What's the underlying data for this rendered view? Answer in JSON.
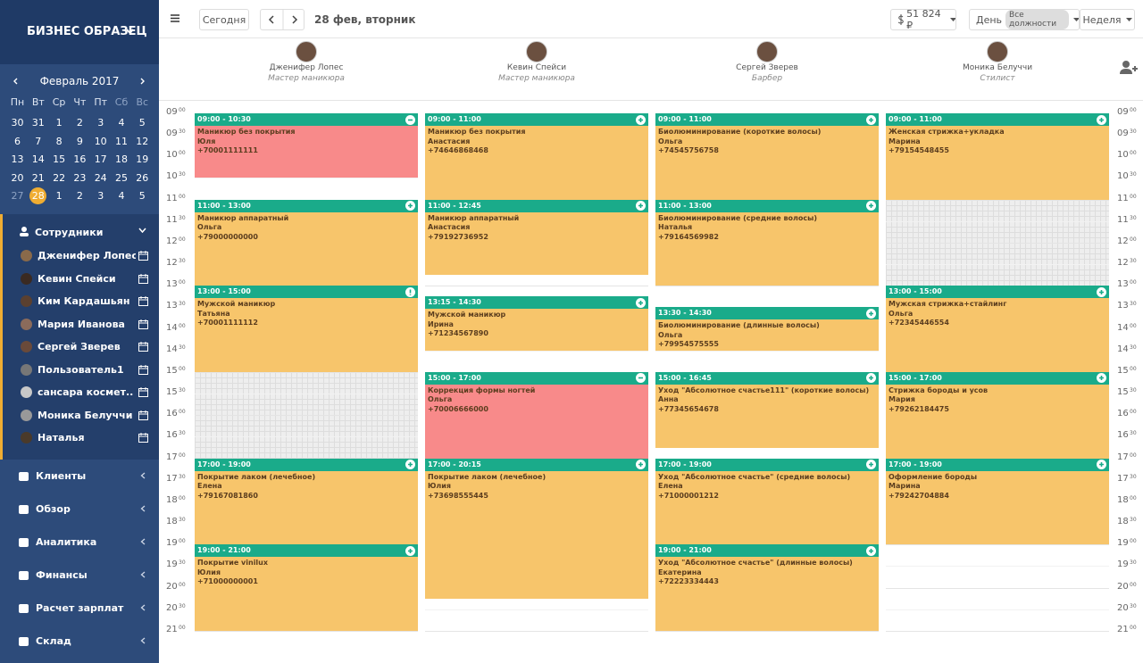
{
  "sidebar": {
    "brand": "БИЗНЕС ОБРАЗЕЦ",
    "calendar": {
      "month": "Февраль 2017",
      "weekdays": [
        "Пн",
        "Вт",
        "Ср",
        "Чт",
        "Пт",
        "Сб",
        "Вс"
      ],
      "weeks": [
        [
          "30",
          "31",
          "1",
          "2",
          "3",
          "4",
          "5"
        ],
        [
          "6",
          "7",
          "8",
          "9",
          "10",
          "11",
          "12"
        ],
        [
          "13",
          "14",
          "15",
          "16",
          "17",
          "18",
          "19"
        ],
        [
          "20",
          "21",
          "22",
          "23",
          "24",
          "25",
          "26"
        ],
        [
          "27",
          "28",
          "1",
          "2",
          "3",
          "4",
          "5"
        ]
      ]
    },
    "staff_title": "Сотрудники",
    "staff": [
      "Дженифер Лопес",
      "Кевин Спейси",
      "Ким Кардашьян",
      "Мария Иванова",
      "Сергей Зверев",
      "Пользователь1",
      "сансара космет..",
      "Моника Белуччи",
      "Наталья"
    ],
    "menu": [
      "Клиенты",
      "Обзор",
      "Аналитика",
      "Финансы",
      "Расчет зарплат",
      "Склад"
    ]
  },
  "toolbar": {
    "today": "Сегодня",
    "date": "28 фев, вторник",
    "balance": "51 824 ₽",
    "day": "День",
    "positions": "Все должности",
    "week": "Неделя"
  },
  "slots": [
    [
      "09",
      "00"
    ],
    [
      "09",
      "30"
    ],
    [
      "10",
      "00"
    ],
    [
      "10",
      "30"
    ],
    [
      "11",
      "00"
    ],
    [
      "11",
      "30"
    ],
    [
      "12",
      "00"
    ],
    [
      "12",
      "30"
    ],
    [
      "13",
      "00"
    ],
    [
      "13",
      "30"
    ],
    [
      "14",
      "00"
    ],
    [
      "14",
      "30"
    ],
    [
      "15",
      "00"
    ],
    [
      "15",
      "30"
    ],
    [
      "16",
      "00"
    ],
    [
      "16",
      "30"
    ],
    [
      "17",
      "00"
    ],
    [
      "17",
      "30"
    ],
    [
      "18",
      "00"
    ],
    [
      "18",
      "30"
    ],
    [
      "19",
      "00"
    ],
    [
      "19",
      "30"
    ],
    [
      "20",
      "00"
    ],
    [
      "20",
      "30"
    ],
    [
      "21",
      "00"
    ]
  ],
  "columns": [
    {
      "name": "Дженифер Лопес",
      "role": "Мастер маникюра",
      "appointments": [
        {
          "time": "09:00 - 10:30",
          "service": "Маникюр без покрытия",
          "client": "Юля",
          "phone": "+70001111111",
          "color": "#f88a8a",
          "icon": "minus"
        },
        {
          "time": "11:00 - 13:00",
          "service": "Маникюр аппаратный",
          "client": "Ольга",
          "phone": "+79000000000",
          "color": "#f7c56b",
          "icon": "plus"
        },
        {
          "time": "13:00 - 15:00",
          "service": "Мужской маникюр",
          "client": "Татьяна",
          "phone": "+70001111112",
          "color": "#f7c56b",
          "icon": "alert"
        },
        {
          "time": "17:00 - 19:00",
          "service": "Покрытие лаком (лечебное)",
          "client": "Елена",
          "phone": "+79167081860",
          "color": "#f7c56b",
          "icon": "plus"
        },
        {
          "time": "19:00 - 21:00",
          "service": "Покрытие vinilux",
          "client": "Юлия",
          "phone": "+71000000001",
          "color": "#f7c56b",
          "icon": "plus"
        }
      ]
    },
    {
      "name": "Кевин Спейси",
      "role": "Мастер маникюра",
      "appointments": [
        {
          "time": "09:00 - 11:00",
          "service": "Маникюр без покрытия",
          "client": "Анастасия",
          "phone": "+74646868468",
          "color": "#f7c56b",
          "icon": "plus"
        },
        {
          "time": "11:00 - 12:45",
          "service": "Маникюр аппаратный",
          "client": "Анастасия",
          "phone": "+79192736952",
          "color": "#f7c56b",
          "icon": "plus"
        },
        {
          "time": "13:15 - 14:30",
          "service": "Мужской маникюр",
          "client": "Ирина",
          "phone": "+71234567890",
          "color": "#f7c56b",
          "icon": "plus"
        },
        {
          "time": "15:00 - 17:00",
          "service": "Коррекция формы ногтей",
          "client": "Ольга",
          "phone": "+70006666000",
          "color": "#f88a8a",
          "icon": "minus"
        },
        {
          "time": "17:00 - 20:15",
          "service": "Покрытие лаком (лечебное)",
          "client": "Юлия",
          "phone": "+73698555445",
          "color": "#f7c56b",
          "icon": "plus"
        }
      ]
    },
    {
      "name": "Сергей Зверев",
      "role": "Барбер",
      "appointments": [
        {
          "time": "09:00 - 11:00",
          "service": "Биолюминирование (короткие волосы)",
          "client": "Ольга",
          "phone": "+74545756758",
          "color": "#f7c56b",
          "icon": "plus"
        },
        {
          "time": "11:00 - 13:00",
          "service": "Биолюминирование (средние волосы)",
          "client": "Наталья",
          "phone": "+79164569982",
          "color": "#f7c56b",
          "icon": "plus"
        },
        {
          "time": "13:30 - 14:30",
          "service": "Биолюминирование (длинные волосы)",
          "client": "Ольга",
          "phone": "+79954575555",
          "color": "#f7c56b",
          "icon": "plus"
        },
        {
          "time": "15:00 - 16:45",
          "service": "Уход \"Абсолютное счастье111\" (короткие волосы)",
          "client": "Анна",
          "phone": "+77345654678",
          "color": "#f7c56b",
          "icon": "plus"
        },
        {
          "time": "17:00 - 19:00",
          "service": "Уход \"Абсолютное счастье\" (средние волосы)",
          "client": "Елена",
          "phone": "+71000001212",
          "color": "#f7c56b",
          "icon": "plus"
        },
        {
          "time": "19:00 - 21:00",
          "service": "Уход \"Абсолютное счастье\" (длинные волосы)",
          "client": "Екатерина",
          "phone": "+72223334443",
          "color": "#f7c56b",
          "icon": "plus"
        }
      ]
    },
    {
      "name": "Моника Белуччи",
      "role": "Стилист",
      "appointments": [
        {
          "time": "09:00 - 11:00",
          "service": "Женская стрижка+укладка",
          "client": "Марина",
          "phone": "+79154548455",
          "color": "#f7c56b",
          "icon": "plus"
        },
        {
          "time": "13:00 - 15:00",
          "service": "Мужская стрижка+стайлинг",
          "client": "Ольга",
          "phone": "+72345446554",
          "color": "#f7c56b",
          "icon": "plus"
        },
        {
          "time": "15:00 - 17:00",
          "service": "Стрижка бороды и усов",
          "client": "Мария",
          "phone": "+79262184475",
          "color": "#f7c56b",
          "icon": "plus"
        },
        {
          "time": "17:00 - 19:00",
          "service": "Оформление бороды",
          "client": "Марина",
          "phone": "+79242704884",
          "color": "#f7c56b",
          "icon": "plus"
        }
      ]
    }
  ]
}
